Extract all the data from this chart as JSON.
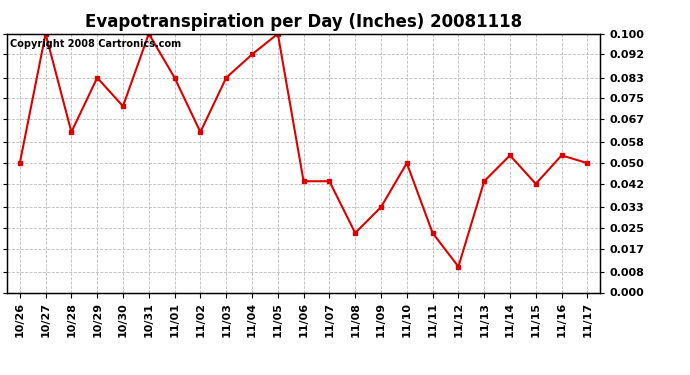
{
  "title": "Evapotranspiration per Day (Inches) 20081118",
  "copyright_text": "Copyright 2008 Cartronics.com",
  "x_labels": [
    "10/26",
    "10/27",
    "10/28",
    "10/29",
    "10/30",
    "10/31",
    "11/01",
    "11/02",
    "11/03",
    "11/04",
    "11/05",
    "11/06",
    "11/07",
    "11/08",
    "11/09",
    "11/10",
    "11/11",
    "11/12",
    "11/13",
    "11/14",
    "11/15",
    "11/16",
    "11/17"
  ],
  "y_values": [
    0.05,
    0.1,
    0.062,
    0.083,
    0.072,
    0.1,
    0.083,
    0.062,
    0.083,
    0.092,
    0.1,
    0.043,
    0.043,
    0.023,
    0.033,
    0.05,
    0.023,
    0.01,
    0.043,
    0.053,
    0.042,
    0.053,
    0.05
  ],
  "line_color": "#dd0000",
  "marker": "s",
  "marker_size": 3,
  "background_color": "#ffffff",
  "grid_color": "#bbbbbb",
  "ylim": [
    0.0,
    0.1
  ],
  "yticks": [
    0.0,
    0.008,
    0.017,
    0.025,
    0.033,
    0.042,
    0.05,
    0.058,
    0.067,
    0.075,
    0.083,
    0.092,
    0.1
  ],
  "title_fontsize": 12,
  "tick_fontsize": 8,
  "copyright_fontsize": 7
}
